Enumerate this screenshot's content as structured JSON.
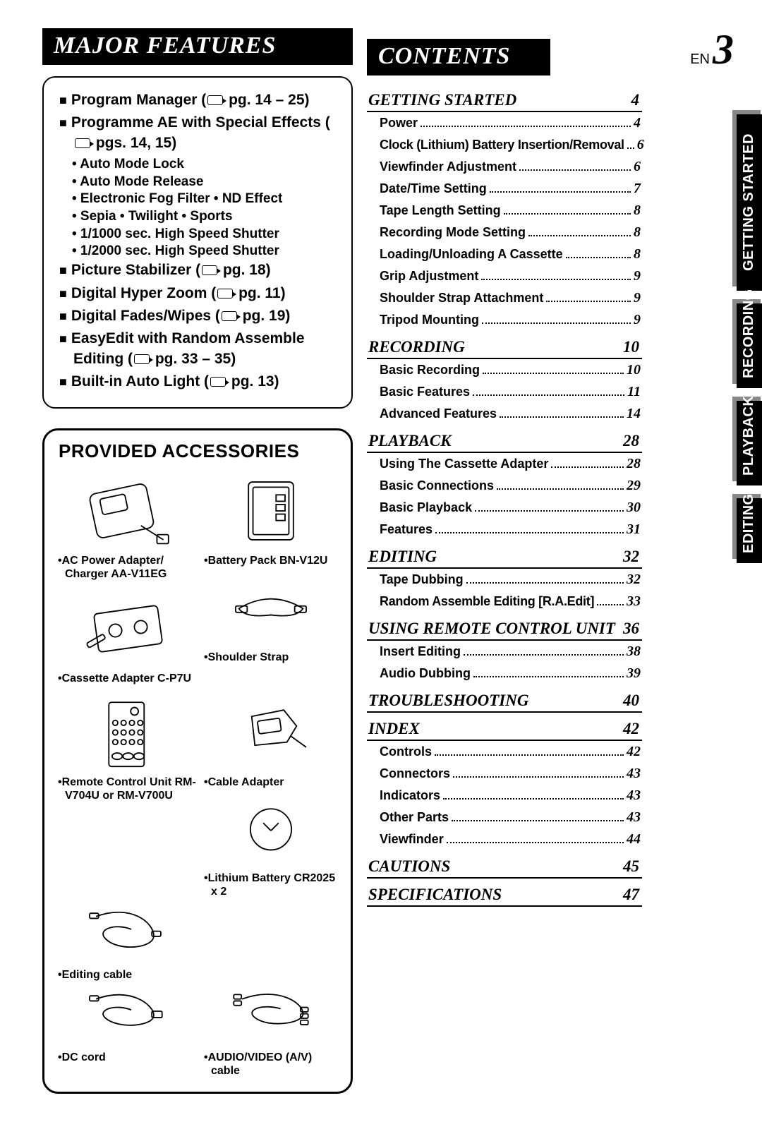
{
  "page": {
    "lang": "EN",
    "number": "3"
  },
  "headers": {
    "features": "MAJOR FEATURES",
    "contents": "CONTENTS",
    "accessories": "PROVIDED ACCESSORIES"
  },
  "features": [
    {
      "text": "Program Manager (",
      "ref": "pg. 14 – 25)",
      "subs": []
    },
    {
      "text": "Programme AE with Special Effects (",
      "ref": "pgs. 14, 15)",
      "subs": [
        "• Auto Mode Lock",
        "• Auto Mode Release",
        "• Electronic Fog Filter  • ND Effect",
        "• Sepia  • Twilight  • Sports",
        "• 1/1000 sec. High Speed Shutter",
        "• 1/2000 sec. High Speed Shutter"
      ]
    },
    {
      "text": "Picture Stabilizer (",
      "ref": "pg. 18)",
      "subs": []
    },
    {
      "text": "Digital Hyper Zoom (",
      "ref": "pg. 11)",
      "subs": []
    },
    {
      "text": "Digital Fades/Wipes (",
      "ref": "pg. 19)",
      "subs": []
    },
    {
      "text": "EasyEdit with Random Assemble Editing (",
      "ref": "pg. 33 – 35)",
      "subs": []
    },
    {
      "text": "Built-in Auto Light (",
      "ref": "pg. 13)",
      "subs": []
    }
  ],
  "accessories": [
    {
      "label": "•AC Power Adapter/ Charger AA-V11EG",
      "icon": "adapter"
    },
    {
      "label": "•Battery Pack BN-V12U",
      "icon": "battery"
    },
    {
      "label": "•Cassette Adapter C-P7U",
      "icon": "cassette"
    },
    {
      "label": "•Shoulder Strap",
      "icon": "strap"
    },
    {
      "label": "•Remote Control Unit RM-V704U or RM-V700U",
      "icon": "remote"
    },
    {
      "label": "•Cable Adapter",
      "icon": "cableadapter"
    },
    {
      "label": "",
      "icon": ""
    },
    {
      "label": "•Lithium Battery CR2025 x 2",
      "icon": "coin"
    },
    {
      "label": "•Editing cable",
      "icon": "editcable"
    },
    {
      "label": "",
      "icon": ""
    },
    {
      "label": "•DC cord",
      "icon": "dccord"
    },
    {
      "label": "•AUDIO/VIDEO (A/V) cable",
      "icon": "avcable"
    }
  ],
  "toc": [
    {
      "type": "section",
      "title": "GETTING STARTED",
      "page": "4"
    },
    {
      "type": "line",
      "title": "Power",
      "page": "4"
    },
    {
      "type": "line",
      "title": "Clock (Lithium) Battery Insertion/Removal",
      "page": "6"
    },
    {
      "type": "line",
      "title": "Viewfinder Adjustment",
      "page": "6"
    },
    {
      "type": "line",
      "title": "Date/Time Setting",
      "page": "7"
    },
    {
      "type": "line",
      "title": "Tape Length Setting",
      "page": "8"
    },
    {
      "type": "line",
      "title": "Recording Mode Setting",
      "page": "8"
    },
    {
      "type": "line",
      "title": "Loading/Unloading A Cassette",
      "page": "8"
    },
    {
      "type": "line",
      "title": "Grip Adjustment",
      "page": "9"
    },
    {
      "type": "line",
      "title": "Shoulder Strap Attachment",
      "page": "9"
    },
    {
      "type": "line",
      "title": "Tripod Mounting",
      "page": "9"
    },
    {
      "type": "section",
      "title": "RECORDING",
      "page": "10"
    },
    {
      "type": "line",
      "title": "Basic Recording",
      "page": "10"
    },
    {
      "type": "line",
      "title": "Basic Features",
      "page": "11"
    },
    {
      "type": "line",
      "title": "Advanced Features",
      "page": "14"
    },
    {
      "type": "section",
      "title": "PLAYBACK",
      "page": "28"
    },
    {
      "type": "line",
      "title": "Using The Cassette Adapter",
      "page": "28"
    },
    {
      "type": "line",
      "title": "Basic Connections",
      "page": "29"
    },
    {
      "type": "line",
      "title": "Basic Playback",
      "page": "30"
    },
    {
      "type": "line",
      "title": "Features",
      "page": "31"
    },
    {
      "type": "section",
      "title": "EDITING",
      "page": "32"
    },
    {
      "type": "line",
      "title": "Tape Dubbing",
      "page": "32"
    },
    {
      "type": "line",
      "title": "Random Assemble Editing [R.A.Edit]",
      "page": "33"
    },
    {
      "type": "section",
      "title": "USING REMOTE CONTROL UNIT",
      "page": "36"
    },
    {
      "type": "line",
      "title": "Insert Editing",
      "page": "38"
    },
    {
      "type": "line",
      "title": "Audio Dubbing",
      "page": "39"
    },
    {
      "type": "section",
      "title": "TROUBLESHOOTING",
      "page": "40"
    },
    {
      "type": "section",
      "title": "INDEX",
      "page": "42"
    },
    {
      "type": "line",
      "title": "Controls",
      "page": "42"
    },
    {
      "type": "line",
      "title": "Connectors",
      "page": "43"
    },
    {
      "type": "line",
      "title": "Indicators",
      "page": "43"
    },
    {
      "type": "line",
      "title": "Other Parts",
      "page": "43"
    },
    {
      "type": "line",
      "title": "Viewfinder",
      "page": "44"
    },
    {
      "type": "section",
      "title": "CAUTIONS",
      "page": "45"
    },
    {
      "type": "section",
      "title": "SPECIFICATIONS",
      "page": "47"
    }
  ],
  "tabs": [
    {
      "label": "GETTING STARTED",
      "style": "dark",
      "size": "t1"
    },
    {
      "label": "RECORDING",
      "style": "dark",
      "size": "t2"
    },
    {
      "label": "PLAYBACK",
      "style": "dark",
      "size": "t3"
    },
    {
      "label": "EDITING",
      "style": "dark",
      "size": "t4"
    }
  ],
  "colors": {
    "black": "#000000",
    "white": "#ffffff",
    "tab_gray": "#b8b8b8"
  }
}
